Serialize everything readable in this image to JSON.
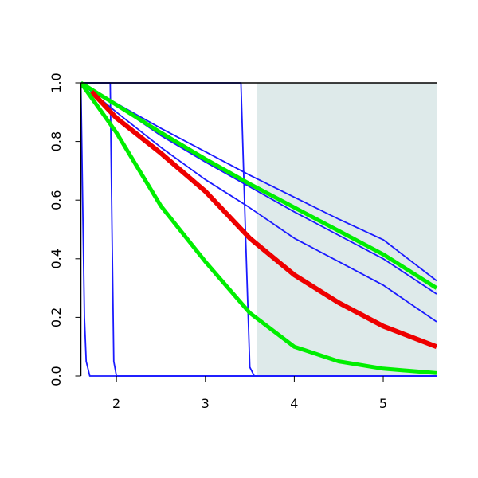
{
  "chart_data": {
    "type": "line",
    "xlim": [
      1.6,
      5.6
    ],
    "ylim": [
      0,
      1
    ],
    "xticks": [
      2,
      3,
      4,
      5
    ],
    "yticks": [
      {
        "value": 0,
        "label": "0.0"
      },
      0.2,
      0.4,
      0.6,
      0.8,
      {
        "value": 1,
        "label": "1.0"
      }
    ],
    "shaded_region": {
      "x": [
        3.58,
        5.6
      ],
      "color": "#deeaea"
    },
    "series": [
      {
        "color": "#1a1aff",
        "width": 1.8,
        "x": [
          1.6,
          2.0,
          2.5,
          3.0,
          3.5,
          4.0,
          4.5,
          5.0,
          5.6
        ],
        "values": [
          1,
          0.93,
          0.845,
          0.765,
          0.685,
          0.61,
          0.535,
          0.465,
          0.325
        ]
      },
      {
        "color": "#1a1aff",
        "width": 1.8,
        "x": [
          1.6,
          2.0,
          2.5,
          3.0,
          3.5,
          4.0,
          4.5,
          5.0,
          5.6
        ],
        "values": [
          1,
          0.925,
          0.82,
          0.73,
          0.645,
          0.56,
          0.48,
          0.4,
          0.28
        ]
      },
      {
        "color": "#1a1aff",
        "width": 1.8,
        "x": [
          1.6,
          2.0,
          2.5,
          3.0,
          3.47,
          4.0,
          4.5,
          5.0,
          5.6
        ],
        "values": [
          1,
          0.9,
          0.78,
          0.67,
          0.58,
          0.47,
          0.39,
          0.31,
          0.185
        ]
      },
      {
        "color": "#1a1aff",
        "width": 1.8,
        "x": [
          1.6,
          1.62,
          1.64,
          1.66,
          1.7,
          1.8,
          5.6
        ],
        "values": [
          1,
          0.6,
          0.2,
          0.05,
          0,
          0,
          0
        ]
      },
      {
        "color": "#1a1aff",
        "width": 1.8,
        "x": [
          1.6,
          1.93,
          1.95,
          1.97,
          2.0,
          5.6
        ],
        "values": [
          1,
          1,
          0.5,
          0.05,
          0,
          0
        ]
      },
      {
        "color": "#1a1aff",
        "width": 1.8,
        "x": [
          1.6,
          3.4,
          3.45,
          3.5,
          3.55,
          5.6
        ],
        "values": [
          1,
          1,
          0.5,
          0.03,
          0,
          0
        ]
      },
      {
        "color": "#00ee00",
        "width": 5,
        "x": [
          1.6,
          2.0,
          2.5,
          3.0,
          3.5,
          4.0,
          4.5,
          5.0,
          5.6
        ],
        "values": [
          1,
          0.925,
          0.83,
          0.74,
          0.655,
          0.575,
          0.495,
          0.415,
          0.3
        ]
      },
      {
        "color": "#ee0000",
        "width": 6,
        "x": [
          1.72,
          2.0,
          2.5,
          3.0,
          3.5,
          4.0,
          4.5,
          5.0,
          5.6
        ],
        "values": [
          0.97,
          0.88,
          0.76,
          0.63,
          0.47,
          0.345,
          0.25,
          0.17,
          0.1
        ]
      },
      {
        "color": "#00ee00",
        "width": 5,
        "x": [
          1.6,
          2.0,
          2.5,
          3.0,
          3.5,
          4.0,
          4.5,
          5.0,
          5.6
        ],
        "values": [
          1,
          0.83,
          0.58,
          0.39,
          0.215,
          0.1,
          0.05,
          0.025,
          0.01
        ]
      }
    ]
  }
}
